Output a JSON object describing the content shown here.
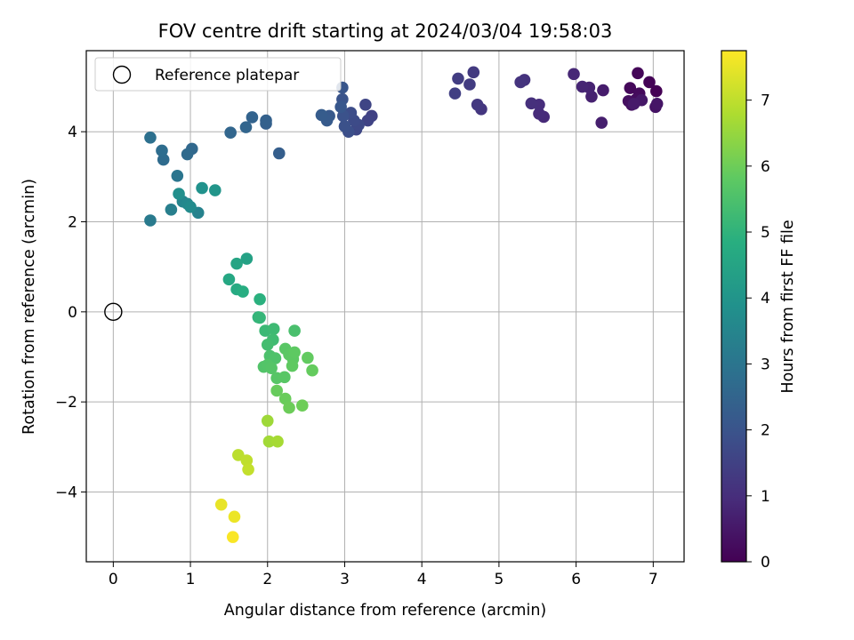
{
  "chart_data": {
    "type": "scatter",
    "title": "FOV centre drift starting at 2024/03/04 19:58:03",
    "xlabel": "Angular distance from reference (arcmin)",
    "ylabel": "Rotation from reference (arcmin)",
    "xlim": [
      -0.35,
      7.4
    ],
    "ylim": [
      -5.55,
      5.8
    ],
    "xticks": [
      "0",
      "1",
      "2",
      "3",
      "4",
      "5",
      "6",
      "7"
    ],
    "yticks": [
      "−4",
      "−2",
      "0",
      "2",
      "4"
    ],
    "grid": true,
    "legend": {
      "placement": "top-left",
      "entries": [
        "Reference platepar"
      ]
    },
    "reference_point": {
      "x": 0,
      "y": 0,
      "label": "Reference platepar"
    },
    "colorbar": {
      "label": "Hours from first FF file",
      "colormap": "viridis",
      "range": [
        0,
        7.75
      ],
      "ticks": [
        "0",
        "1",
        "2",
        "3",
        "4",
        "5",
        "6",
        "7"
      ]
    },
    "points": [
      {
        "x": 7.04,
        "y": 4.9,
        "h": 0.0
      },
      {
        "x": 6.95,
        "y": 5.1,
        "h": 0.05
      },
      {
        "x": 6.8,
        "y": 5.3,
        "h": 0.1
      },
      {
        "x": 6.7,
        "y": 4.97,
        "h": 0.15
      },
      {
        "x": 6.82,
        "y": 4.85,
        "h": 0.2
      },
      {
        "x": 6.78,
        "y": 4.72,
        "h": 0.25
      },
      {
        "x": 6.68,
        "y": 4.68,
        "h": 0.3
      },
      {
        "x": 6.72,
        "y": 4.6,
        "h": 0.35
      },
      {
        "x": 7.03,
        "y": 4.55,
        "h": 0.4
      },
      {
        "x": 7.05,
        "y": 4.62,
        "h": 0.45
      },
      {
        "x": 6.85,
        "y": 4.7,
        "h": 0.5
      },
      {
        "x": 6.75,
        "y": 4.62,
        "h": 0.55
      },
      {
        "x": 6.35,
        "y": 4.92,
        "h": 0.6
      },
      {
        "x": 6.33,
        "y": 4.2,
        "h": 0.65
      },
      {
        "x": 6.2,
        "y": 4.78,
        "h": 0.7
      },
      {
        "x": 6.17,
        "y": 4.98,
        "h": 0.75
      },
      {
        "x": 6.08,
        "y": 5.0,
        "h": 0.8
      },
      {
        "x": 5.97,
        "y": 5.28,
        "h": 0.85
      },
      {
        "x": 5.58,
        "y": 4.33,
        "h": 0.9
      },
      {
        "x": 5.52,
        "y": 4.4,
        "h": 0.95
      },
      {
        "x": 5.52,
        "y": 4.6,
        "h": 1.0
      },
      {
        "x": 5.42,
        "y": 4.63,
        "h": 1.05
      },
      {
        "x": 5.33,
        "y": 5.15,
        "h": 1.1
      },
      {
        "x": 5.28,
        "y": 5.1,
        "h": 1.15
      },
      {
        "x": 4.77,
        "y": 4.5,
        "h": 1.2
      },
      {
        "x": 4.72,
        "y": 4.6,
        "h": 1.25
      },
      {
        "x": 4.67,
        "y": 5.32,
        "h": 1.3
      },
      {
        "x": 4.62,
        "y": 5.05,
        "h": 1.35
      },
      {
        "x": 4.47,
        "y": 5.18,
        "h": 1.4
      },
      {
        "x": 4.43,
        "y": 4.85,
        "h": 1.45
      },
      {
        "x": 3.35,
        "y": 4.35,
        "h": 1.5
      },
      {
        "x": 3.3,
        "y": 4.25,
        "h": 1.55
      },
      {
        "x": 3.27,
        "y": 4.6,
        "h": 1.6
      },
      {
        "x": 3.15,
        "y": 4.05,
        "h": 1.65
      },
      {
        "x": 3.18,
        "y": 4.15,
        "h": 1.7
      },
      {
        "x": 3.12,
        "y": 4.25,
        "h": 1.75
      },
      {
        "x": 3.08,
        "y": 4.42,
        "h": 1.8
      },
      {
        "x": 3.05,
        "y": 4.0,
        "h": 1.85
      },
      {
        "x": 3.0,
        "y": 4.12,
        "h": 1.9
      },
      {
        "x": 2.98,
        "y": 4.35,
        "h": 1.95
      },
      {
        "x": 2.97,
        "y": 4.72,
        "h": 2.0
      },
      {
        "x": 2.97,
        "y": 4.98,
        "h": 2.05
      },
      {
        "x": 2.95,
        "y": 4.55,
        "h": 2.1
      },
      {
        "x": 2.8,
        "y": 4.35,
        "h": 2.15
      },
      {
        "x": 2.77,
        "y": 4.25,
        "h": 2.2
      },
      {
        "x": 2.7,
        "y": 4.37,
        "h": 2.25
      },
      {
        "x": 2.15,
        "y": 3.52,
        "h": 2.3
      },
      {
        "x": 1.98,
        "y": 4.18,
        "h": 2.35
      },
      {
        "x": 1.98,
        "y": 4.25,
        "h": 2.4
      },
      {
        "x": 1.8,
        "y": 4.32,
        "h": 2.45
      },
      {
        "x": 1.72,
        "y": 4.1,
        "h": 2.5
      },
      {
        "x": 1.52,
        "y": 3.98,
        "h": 2.55
      },
      {
        "x": 1.02,
        "y": 3.62,
        "h": 2.6
      },
      {
        "x": 0.96,
        "y": 3.5,
        "h": 2.65
      },
      {
        "x": 0.65,
        "y": 3.38,
        "h": 2.7
      },
      {
        "x": 0.63,
        "y": 3.58,
        "h": 2.75
      },
      {
        "x": 0.48,
        "y": 3.87,
        "h": 2.85
      },
      {
        "x": 0.83,
        "y": 3.02,
        "h": 3.0
      },
      {
        "x": 0.48,
        "y": 2.03,
        "h": 3.15
      },
      {
        "x": 0.75,
        "y": 2.27,
        "h": 3.3
      },
      {
        "x": 1.1,
        "y": 2.2,
        "h": 3.4
      },
      {
        "x": 0.9,
        "y": 2.45,
        "h": 3.5
      },
      {
        "x": 0.96,
        "y": 2.4,
        "h": 3.6
      },
      {
        "x": 1.0,
        "y": 2.33,
        "h": 3.7
      },
      {
        "x": 0.85,
        "y": 2.62,
        "h": 3.8
      },
      {
        "x": 1.15,
        "y": 2.75,
        "h": 3.9
      },
      {
        "x": 1.32,
        "y": 2.7,
        "h": 4.0
      },
      {
        "x": 1.73,
        "y": 1.18,
        "h": 4.4
      },
      {
        "x": 1.6,
        "y": 1.07,
        "h": 4.5
      },
      {
        "x": 1.5,
        "y": 0.72,
        "h": 4.6
      },
      {
        "x": 1.6,
        "y": 0.5,
        "h": 4.7
      },
      {
        "x": 1.68,
        "y": 0.45,
        "h": 4.8
      },
      {
        "x": 1.9,
        "y": 0.28,
        "h": 4.9
      },
      {
        "x": 1.88,
        "y": -0.12,
        "h": 5.0
      },
      {
        "x": 1.9,
        "y": -0.13,
        "h": 5.1
      },
      {
        "x": 1.97,
        "y": -0.42,
        "h": 5.2
      },
      {
        "x": 2.08,
        "y": -0.38,
        "h": 5.25
      },
      {
        "x": 2.07,
        "y": -0.62,
        "h": 5.3
      },
      {
        "x": 2.0,
        "y": -0.73,
        "h": 5.35
      },
      {
        "x": 2.35,
        "y": -0.42,
        "h": 5.45
      },
      {
        "x": 2.03,
        "y": -0.98,
        "h": 5.5
      },
      {
        "x": 2.1,
        "y": -1.03,
        "h": 5.55
      },
      {
        "x": 1.95,
        "y": -1.22,
        "h": 5.6
      },
      {
        "x": 2.0,
        "y": -1.18,
        "h": 5.62
      },
      {
        "x": 2.05,
        "y": -1.25,
        "h": 5.65
      },
      {
        "x": 2.12,
        "y": -1.47,
        "h": 5.68
      },
      {
        "x": 2.22,
        "y": -1.45,
        "h": 5.7
      },
      {
        "x": 2.23,
        "y": -0.82,
        "h": 5.72
      },
      {
        "x": 2.28,
        "y": -0.95,
        "h": 5.75
      },
      {
        "x": 2.33,
        "y": -1.05,
        "h": 5.78
      },
      {
        "x": 2.35,
        "y": -0.9,
        "h": 5.8
      },
      {
        "x": 2.32,
        "y": -1.2,
        "h": 5.83
      },
      {
        "x": 2.52,
        "y": -1.02,
        "h": 5.86
      },
      {
        "x": 2.58,
        "y": -1.3,
        "h": 5.89
      },
      {
        "x": 2.12,
        "y": -1.75,
        "h": 5.92
      },
      {
        "x": 2.23,
        "y": -1.93,
        "h": 5.95
      },
      {
        "x": 2.28,
        "y": -2.13,
        "h": 5.98
      },
      {
        "x": 2.45,
        "y": -2.08,
        "h": 6.0
      },
      {
        "x": 2.0,
        "y": -2.42,
        "h": 6.6
      },
      {
        "x": 2.02,
        "y": -2.88,
        "h": 6.65
      },
      {
        "x": 2.13,
        "y": -2.88,
        "h": 6.7
      },
      {
        "x": 1.62,
        "y": -3.18,
        "h": 6.95
      },
      {
        "x": 1.73,
        "y": -3.3,
        "h": 7.0
      },
      {
        "x": 1.75,
        "y": -3.5,
        "h": 7.05
      },
      {
        "x": 1.4,
        "y": -4.28,
        "h": 7.5
      },
      {
        "x": 1.57,
        "y": -4.55,
        "h": 7.55
      },
      {
        "x": 1.55,
        "y": -5.0,
        "h": 7.7
      }
    ]
  }
}
